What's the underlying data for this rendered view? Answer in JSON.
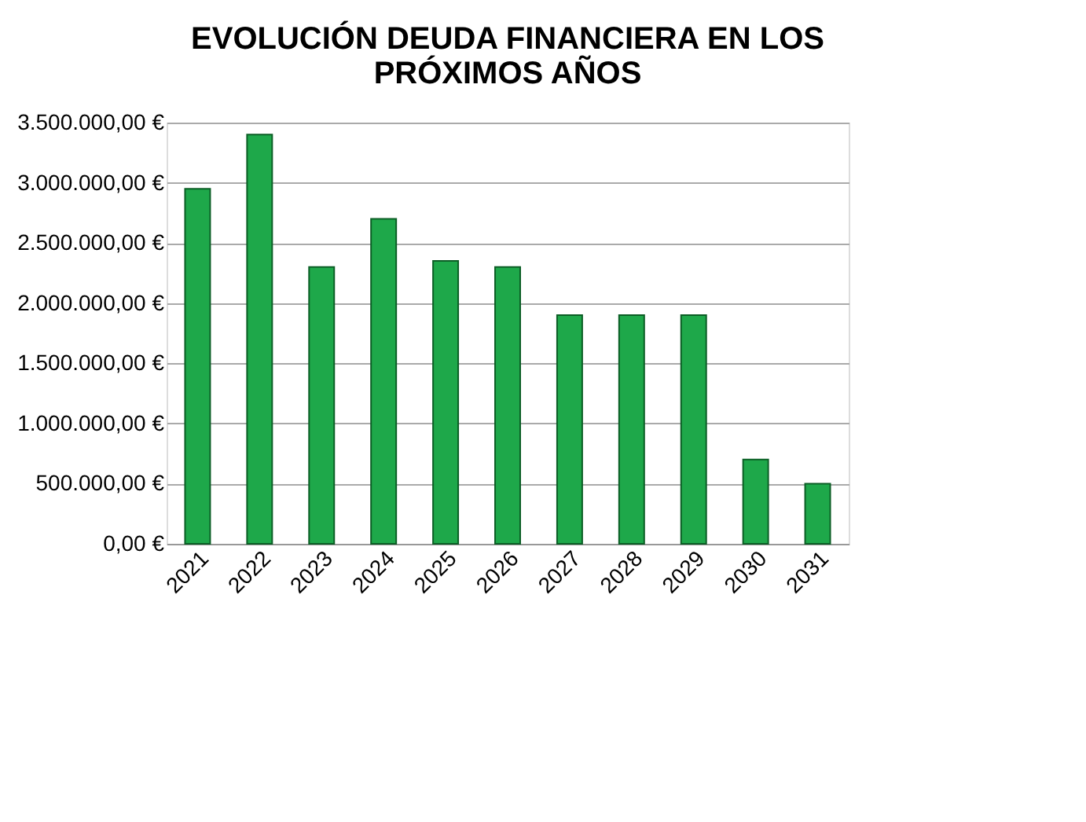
{
  "chart_data": {
    "type": "bar",
    "title": "EVOLUCIÓN DEUDA FINANCIERA EN LOS\nPRÓXIMOS AÑOS",
    "categories": [
      "2021",
      "2022",
      "2023",
      "2024",
      "2025",
      "2026",
      "2027",
      "2028",
      "2029",
      "2030",
      "2031"
    ],
    "values": [
      2950000,
      3400000,
      2300000,
      2700000,
      2350000,
      2300000,
      1900000,
      1900000,
      1900000,
      700000,
      500000
    ],
    "color": "#1ea84a",
    "ylim": [
      0,
      3500000
    ],
    "yticks": [
      {
        "value": 0,
        "label": "0,00 €"
      },
      {
        "value": 500000,
        "label": "500.000,00 €"
      },
      {
        "value": 1000000,
        "label": "1.000.000,00 €"
      },
      {
        "value": 1500000,
        "label": "1.500.000,00 €"
      },
      {
        "value": 2000000,
        "label": "2.000.000,00 €"
      },
      {
        "value": 2500000,
        "label": "2.500.000,00 €"
      },
      {
        "value": 3000000,
        "label": "3.000.000,00 €"
      },
      {
        "value": 3500000,
        "label": "3.500.000,00 €"
      }
    ],
    "grid": "y"
  }
}
